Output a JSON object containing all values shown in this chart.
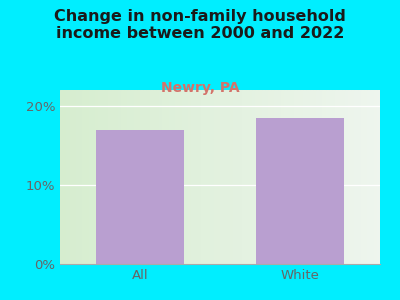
{
  "title": "Change in non-family household\nincome between 2000 and 2022",
  "subtitle": "Newry, PA",
  "categories": [
    "All",
    "White"
  ],
  "values": [
    17.0,
    18.5
  ],
  "bar_color": "#b99fd0",
  "title_color": "#1a1a1a",
  "subtitle_color": "#d4736a",
  "tick_color": "#666666",
  "background_outer": "#00eeff",
  "ylim": [
    0,
    22
  ],
  "yticks": [
    0,
    10,
    20
  ],
  "ytick_labels": [
    "0%",
    "10%",
    "20%"
  ],
  "title_fontsize": 11.5,
  "subtitle_fontsize": 10,
  "tick_fontsize": 9.5,
  "gradient_left": "#d6edcf",
  "gradient_right": "#eef5ee"
}
